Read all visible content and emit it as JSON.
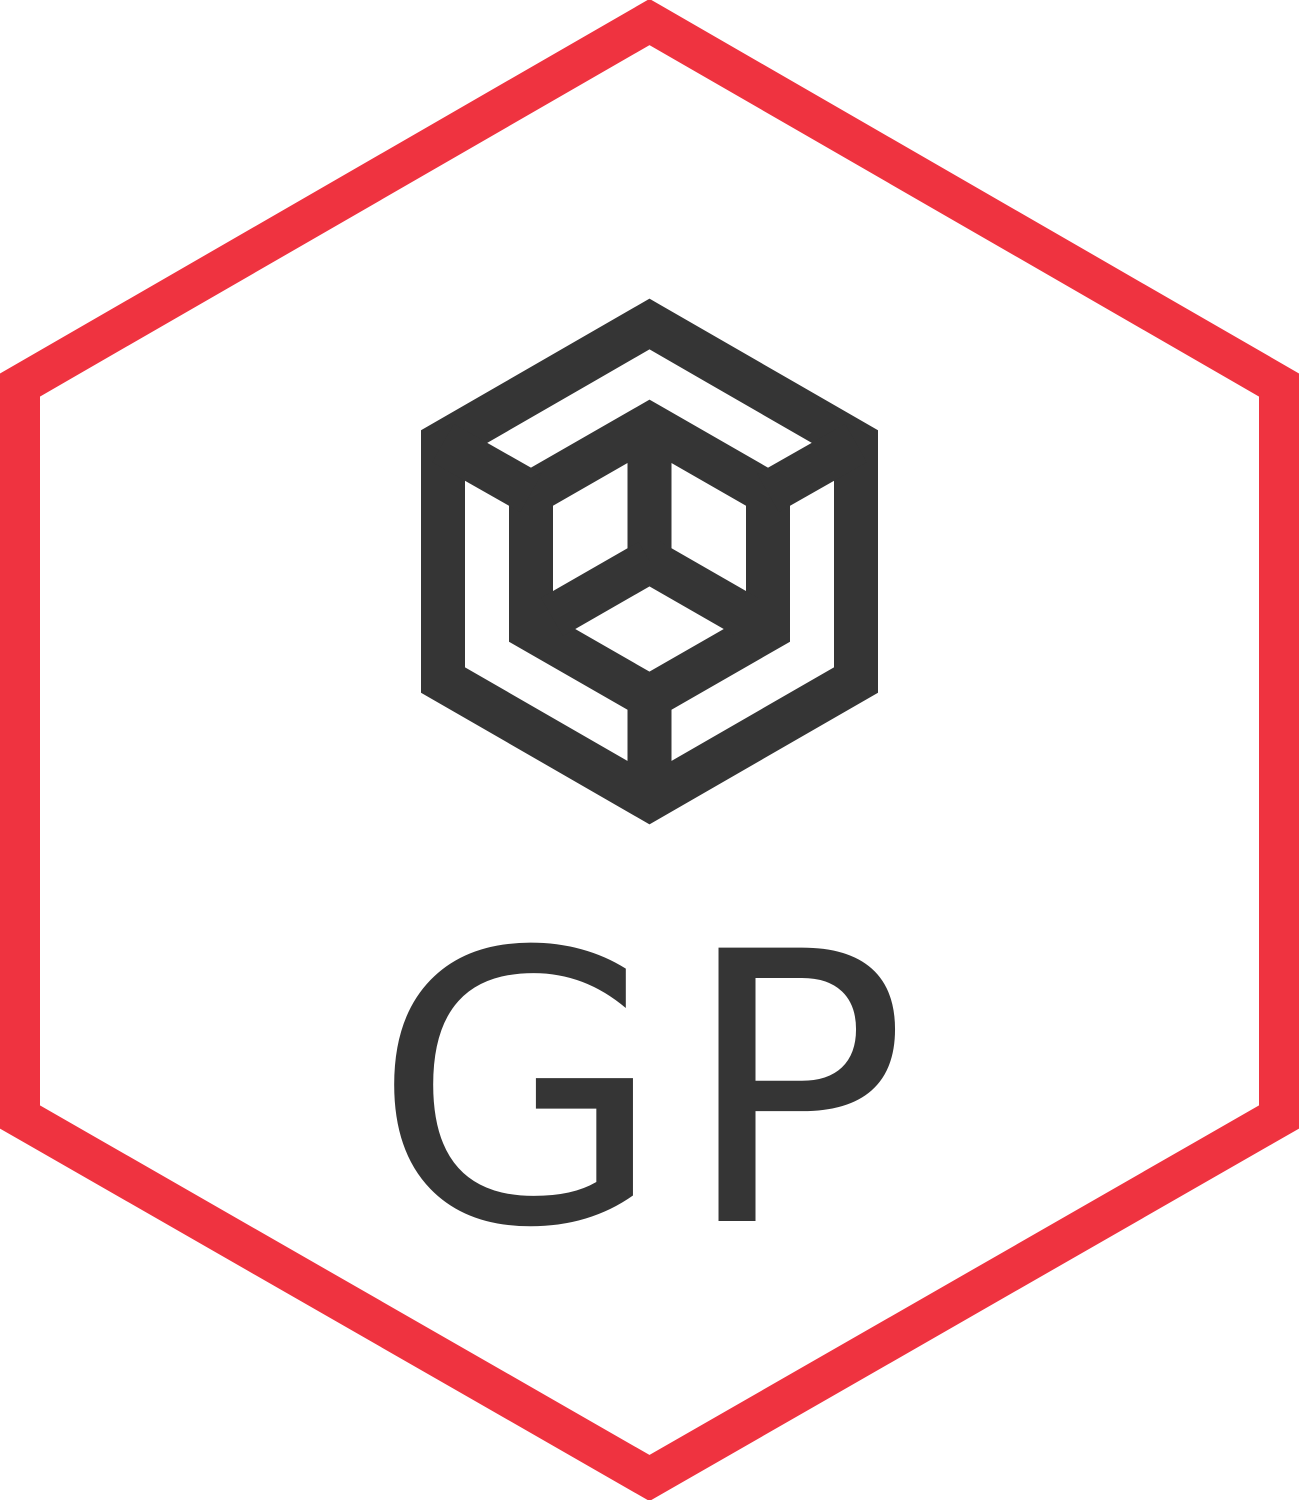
{
  "logo": {
    "monogram": "GP",
    "cube_icon": "isometric-cube-icon"
  },
  "colors": {
    "frame": "#ef3340",
    "mark": "#353535",
    "background": "#ffffff"
  }
}
